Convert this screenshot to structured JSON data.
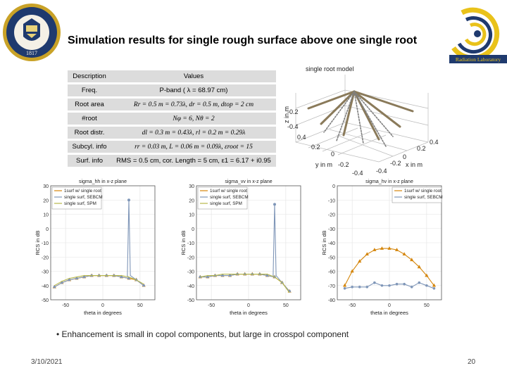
{
  "slide": {
    "title": "Simulation results for single rough surface above one single root",
    "bullet": "Enhancement is small in copol components, but large in crosspol component",
    "date": "3/10/2021",
    "page": "20"
  },
  "seal": {
    "top_text": "THE UNIVERSITY OF MICHIGAN",
    "year": "1817"
  },
  "lab_logo": {
    "text": "Radiation Laboratory"
  },
  "table": {
    "header": [
      "Description",
      "Values"
    ],
    "rows": [
      {
        "label": "Freq.",
        "value": "P-band ( λ = 68.97 cm)"
      },
      {
        "label": "Root area",
        "value": "Rr = 0.5 m = 0.73λ, dr = 0.5 m, dtop = 2 cm"
      },
      {
        "label": "#root",
        "value": "Nφ = 6, Nθ = 2"
      },
      {
        "label": "Root distr.",
        "value": "dl = 0.3 m = 0.43λ, rl = 0.2 m = 0.29λ"
      },
      {
        "label": "Subcyl. info",
        "value": "rr = 0.03 m, L = 0.06 m = 0.09λ, εroot = 15"
      },
      {
        "label": "Surf. info",
        "value": "RMS = 0.5 cm, cor. Length = 5 cm, ε1 = 6.17 + i0.95"
      }
    ]
  },
  "model": {
    "title": "single root model",
    "zlabel": "z in m",
    "ylabel": "y in m",
    "xlabel": "x in m",
    "zticks": [
      "-0.2",
      "-0.4"
    ],
    "yticks": [
      "0.4",
      "0.2",
      "0",
      "-0.2",
      "-0.4"
    ],
    "xticks": [
      "0.4",
      "0.2",
      "0",
      "-0.2",
      "-0.4"
    ]
  },
  "chart_data": [
    {
      "type": "line",
      "title": "sigma_hh in x-z plane",
      "xlabel": "theta in degrees",
      "ylabel": "RCS in dB",
      "xlim": [
        -70,
        70
      ],
      "ylim": [
        -50,
        30
      ],
      "yticks": [
        30,
        20,
        10,
        0,
        -10,
        -20,
        -30,
        -40,
        -50
      ],
      "xticks": [
        -50,
        0,
        50
      ],
      "legend_position": "top-left",
      "series": [
        {
          "name": "1surf w/ single root",
          "color": "#d4850a",
          "marker": "triangle",
          "x": [
            -65,
            -55,
            -45,
            -35,
            -25,
            -15,
            -5,
            5,
            15,
            25,
            35,
            45,
            55
          ],
          "values": [
            -41,
            -38,
            -36,
            -35,
            -34,
            -33,
            -33,
            -33,
            -33,
            -34,
            -35,
            -36,
            -40
          ]
        },
        {
          "name": "single surf, SEBCM",
          "color": "#7f96b8",
          "marker": "circle",
          "x": [
            -65,
            -55,
            -45,
            -35,
            -25,
            -15,
            -5,
            5,
            15,
            25,
            35,
            45,
            55
          ],
          "values": [
            -41,
            -38,
            -36,
            -35,
            -34,
            -33,
            -33,
            -33,
            -33,
            -34,
            -35,
            -36,
            -40
          ],
          "peak": {
            "x": 35,
            "value": 20
          }
        },
        {
          "name": "single surf, SPM",
          "color": "#b8b84a",
          "marker": "none",
          "x": [
            -65,
            -55,
            -45,
            -35,
            -25,
            -15,
            -5,
            5,
            15,
            25,
            35,
            45,
            55
          ],
          "values": [
            -40,
            -37,
            -35,
            -34,
            -33,
            -33,
            -33,
            -33,
            -33,
            -33,
            -34,
            -36,
            -39
          ]
        }
      ]
    },
    {
      "type": "line",
      "title": "sigma_vv in x-z plane",
      "xlabel": "theta in degrees",
      "ylabel": "RCS in dB",
      "xlim": [
        -70,
        70
      ],
      "ylim": [
        -50,
        30
      ],
      "yticks": [
        30,
        20,
        10,
        0,
        -10,
        -20,
        -30,
        -40,
        -50
      ],
      "xticks": [
        -50,
        0,
        50
      ],
      "legend_position": "top-left",
      "series": [
        {
          "name": "1surf w/ single root",
          "color": "#d4850a",
          "marker": "triangle",
          "x": [
            -65,
            -55,
            -45,
            -35,
            -25,
            -15,
            -5,
            5,
            15,
            25,
            35,
            45,
            55
          ],
          "values": [
            -34,
            -34,
            -33,
            -33,
            -33,
            -32,
            -32,
            -32,
            -32,
            -33,
            -34,
            -38,
            -44
          ]
        },
        {
          "name": "single surf, SEBCM",
          "color": "#7f96b8",
          "marker": "circle",
          "x": [
            -65,
            -55,
            -45,
            -35,
            -25,
            -15,
            -5,
            5,
            15,
            25,
            35,
            45,
            55
          ],
          "values": [
            -34,
            -34,
            -33,
            -33,
            -33,
            -32,
            -32,
            -32,
            -32,
            -33,
            -34,
            -38,
            -44
          ],
          "peak": {
            "x": 35,
            "value": 17
          }
        },
        {
          "name": "single surf, SPM",
          "color": "#b8b84a",
          "marker": "none",
          "x": [
            -65,
            -55,
            -45,
            -35,
            -25,
            -15,
            -5,
            5,
            15,
            25,
            35,
            45,
            55
          ],
          "values": [
            -34,
            -33,
            -33,
            -32,
            -32,
            -32,
            -32,
            -32,
            -32,
            -32,
            -34,
            -38,
            -45
          ]
        }
      ]
    },
    {
      "type": "line",
      "title": "sigma_hv in x-z plane",
      "xlabel": "theta in degrees",
      "ylabel": "RCS in dB",
      "xlim": [
        -70,
        70
      ],
      "ylim": [
        -80,
        0
      ],
      "yticks": [
        0,
        -10,
        -20,
        -30,
        -40,
        -50,
        -60,
        -70,
        -80
      ],
      "xticks": [
        -50,
        0,
        50
      ],
      "legend_position": "top-right",
      "series": [
        {
          "name": "1surf w/ single root",
          "color": "#d4850a",
          "marker": "triangle",
          "x": [
            -60,
            -50,
            -40,
            -30,
            -20,
            -10,
            0,
            10,
            20,
            30,
            40,
            50,
            60
          ],
          "values": [
            -70,
            -60,
            -53,
            -48,
            -45,
            -44,
            -44,
            -45,
            -48,
            -52,
            -57,
            -63,
            -70
          ]
        },
        {
          "name": "single surf, SEBCM",
          "color": "#7f96b8",
          "marker": "circle",
          "x": [
            -60,
            -50,
            -40,
            -30,
            -20,
            -10,
            0,
            10,
            20,
            30,
            40,
            50,
            60
          ],
          "values": [
            -72,
            -71,
            -71,
            -71,
            -68,
            -70,
            -70,
            -69,
            -69,
            -71,
            -68,
            -70,
            -72
          ]
        }
      ]
    }
  ]
}
